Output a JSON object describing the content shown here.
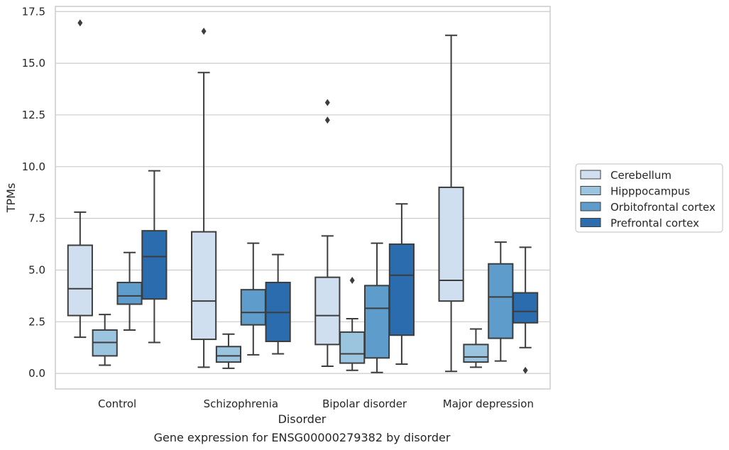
{
  "chart_data": {
    "type": "box",
    "caption": "Gene expression for ENSG00000279382 by disorder",
    "xlabel": "Disorder",
    "ylabel": "TPMs",
    "ylim": [
      -0.75,
      17.75
    ],
    "yticks": [
      "0.0",
      "2.5",
      "5.0",
      "7.5",
      "10.0",
      "12.5",
      "15.0",
      "17.5"
    ],
    "ytick_values": [
      0,
      2.5,
      5,
      7.5,
      10,
      12.5,
      15,
      17.5
    ],
    "grid": true,
    "legend_position": "outside right",
    "categories": [
      "Control",
      "Schizophrenia",
      "Bipolar disorder",
      "Major depression"
    ],
    "series": [
      {
        "name": "Cerebellum",
        "color": "#d0dff0",
        "boxes": [
          {
            "whislo": 1.75,
            "q1": 2.8,
            "med": 4.1,
            "q3": 6.2,
            "whishi": 7.8,
            "fliers": [
              16.95
            ]
          },
          {
            "whislo": 0.3,
            "q1": 1.65,
            "med": 3.5,
            "q3": 6.85,
            "whishi": 14.55,
            "fliers": [
              16.55
            ]
          },
          {
            "whislo": 0.35,
            "q1": 1.4,
            "med": 2.8,
            "q3": 4.65,
            "whishi": 6.65,
            "fliers": [
              12.25,
              13.1
            ]
          },
          {
            "whislo": 0.1,
            "q1": 3.5,
            "med": 4.5,
            "q3": 9.0,
            "whishi": 16.35,
            "fliers": []
          }
        ]
      },
      {
        "name": "Hipppocampus",
        "color": "#9bc4de",
        "boxes": [
          {
            "whislo": 0.4,
            "q1": 0.85,
            "med": 1.5,
            "q3": 2.1,
            "whishi": 2.85,
            "fliers": []
          },
          {
            "whislo": 0.25,
            "q1": 0.55,
            "med": 0.85,
            "q3": 1.3,
            "whishi": 1.9,
            "fliers": []
          },
          {
            "whislo": 0.15,
            "q1": 0.5,
            "med": 0.95,
            "q3": 2.0,
            "whishi": 2.65,
            "fliers": [
              4.5
            ]
          },
          {
            "whislo": 0.3,
            "q1": 0.55,
            "med": 0.8,
            "q3": 1.4,
            "whishi": 2.15,
            "fliers": []
          }
        ]
      },
      {
        "name": "Orbitofrontal cortex",
        "color": "#5d9ccb",
        "boxes": [
          {
            "whislo": 2.1,
            "q1": 3.35,
            "med": 3.75,
            "q3": 4.4,
            "whishi": 5.85,
            "fliers": []
          },
          {
            "whislo": 0.9,
            "q1": 2.35,
            "med": 2.95,
            "q3": 4.05,
            "whishi": 6.3,
            "fliers": []
          },
          {
            "whislo": 0.05,
            "q1": 0.75,
            "med": 3.15,
            "q3": 4.25,
            "whishi": 6.3,
            "fliers": []
          },
          {
            "whislo": 0.6,
            "q1": 1.7,
            "med": 3.7,
            "q3": 5.3,
            "whishi": 6.35,
            "fliers": []
          }
        ]
      },
      {
        "name": "Prefrontal cortex",
        "color": "#2a6cae",
        "boxes": [
          {
            "whislo": 1.5,
            "q1": 3.6,
            "med": 5.65,
            "q3": 6.9,
            "whishi": 9.8,
            "fliers": []
          },
          {
            "whislo": 0.95,
            "q1": 1.55,
            "med": 2.95,
            "q3": 4.4,
            "whishi": 5.75,
            "fliers": []
          },
          {
            "whislo": 0.45,
            "q1": 1.85,
            "med": 4.75,
            "q3": 6.25,
            "whishi": 8.2,
            "fliers": []
          },
          {
            "whislo": 1.25,
            "q1": 2.45,
            "med": 3.0,
            "q3": 3.9,
            "whishi": 6.1,
            "fliers": [
              0.15
            ]
          }
        ]
      }
    ]
  }
}
